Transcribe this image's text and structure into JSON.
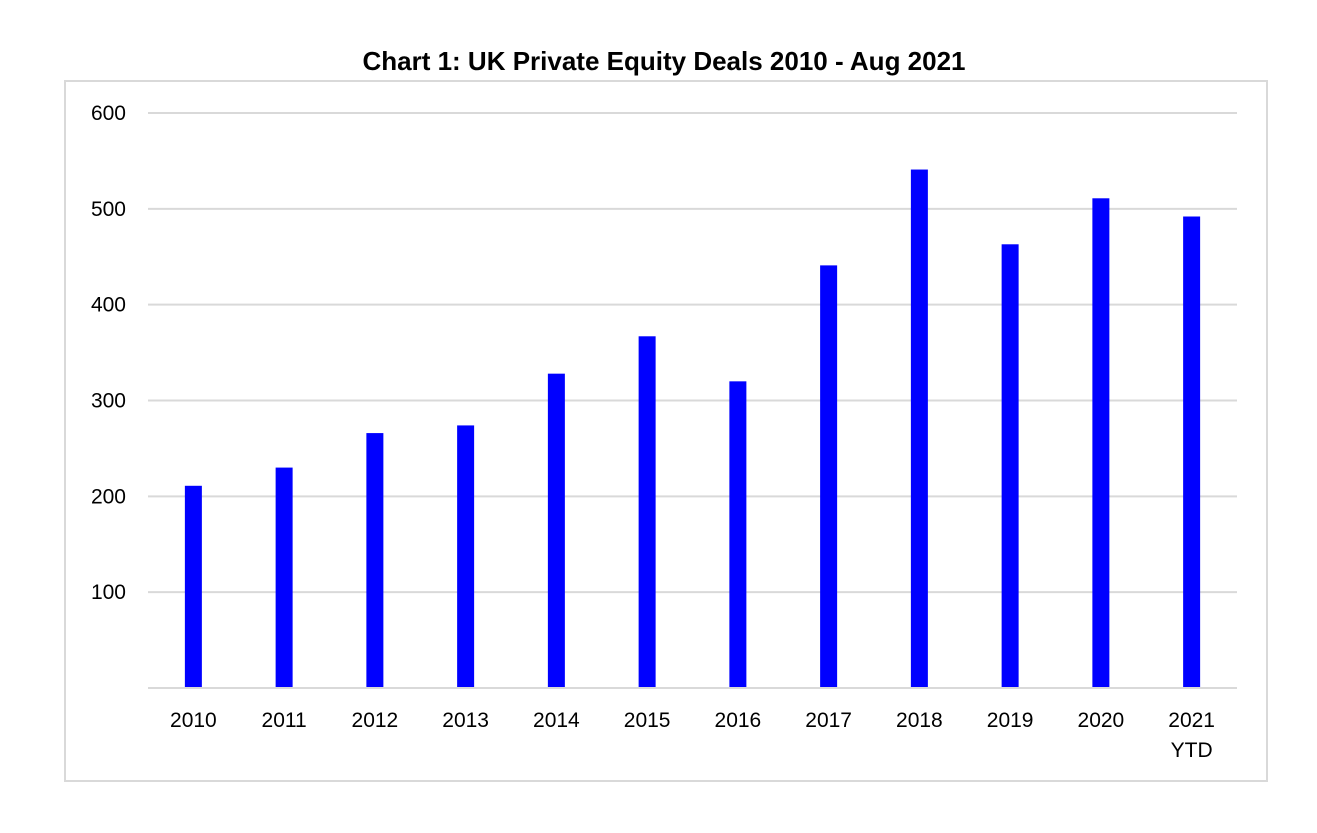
{
  "chart_data": {
    "type": "bar",
    "title": "Chart 1: UK Private Equity Deals 2010 - Aug 2021",
    "xlabel": "",
    "ylabel": "",
    "categories": [
      [
        "2010"
      ],
      [
        "2011"
      ],
      [
        "2012"
      ],
      [
        "2013"
      ],
      [
        "2014"
      ],
      [
        "2015"
      ],
      [
        "2016"
      ],
      [
        "2017"
      ],
      [
        "2018"
      ],
      [
        "2019"
      ],
      [
        "2020"
      ],
      [
        "2021",
        "YTD"
      ]
    ],
    "series": [
      {
        "values": [
          211,
          230,
          266,
          274,
          328,
          367,
          320,
          441,
          541,
          463,
          511,
          492
        ]
      }
    ],
    "ylim": [
      0,
      600
    ],
    "yticks": [
      600,
      500,
      400,
      300,
      200,
      100
    ],
    "grid": true,
    "legend": "none",
    "colors": {
      "bar": "#0000ff",
      "grid": "#d9d9d9",
      "frame": "#d9d9d9"
    }
  }
}
